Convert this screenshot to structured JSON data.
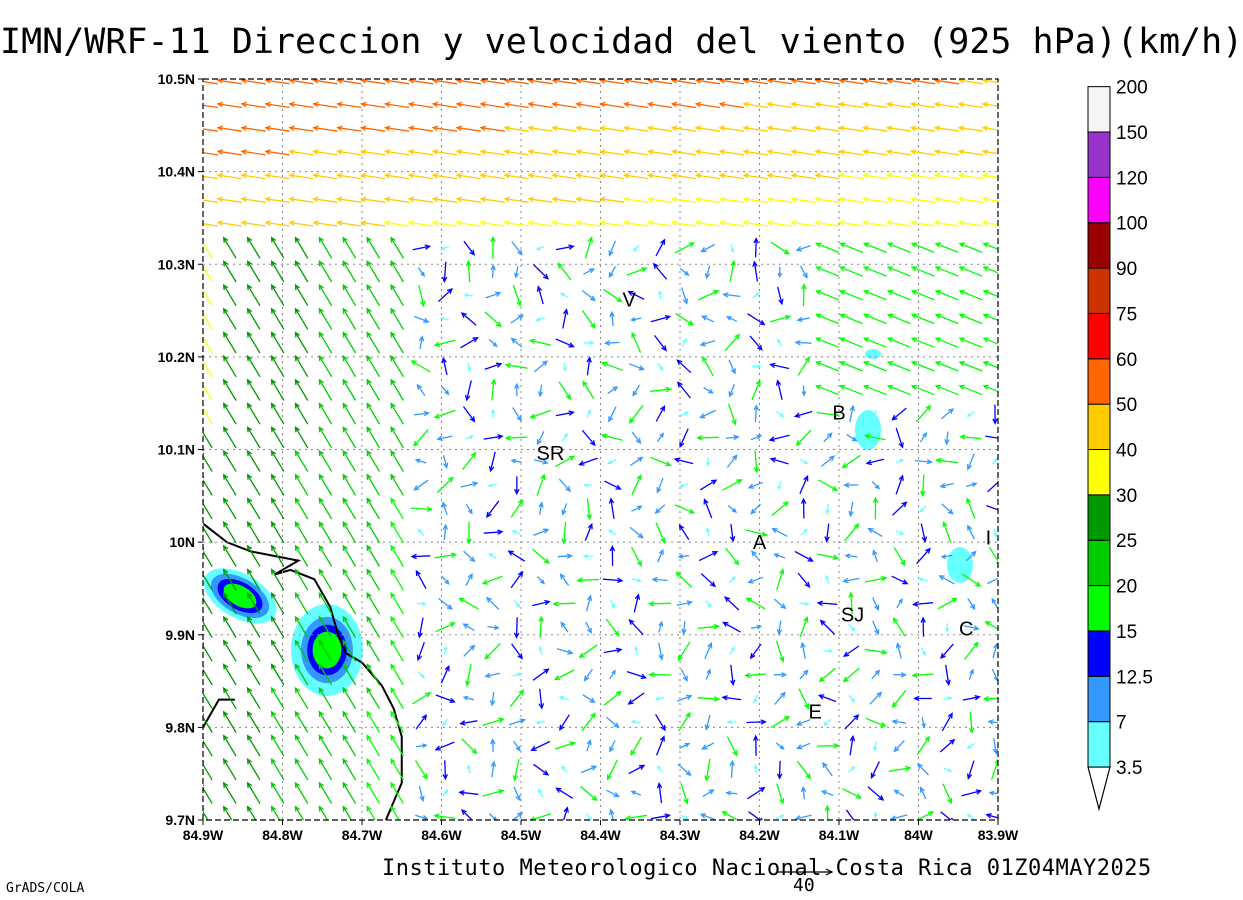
{
  "title": "IMN/WRF-11 Direccion y velocidad del viento (925 hPa)(km/h)",
  "footer": "Instituto Meteorologico Nacional Costa Rica 01Z04MAY2025",
  "credit": "GrADS/COLA",
  "reference_vector": {
    "label": "40",
    "speed_kmh": 40
  },
  "map": {
    "lon_range": [
      -84.9,
      -83.9
    ],
    "lat_range": [
      9.7,
      10.5
    ],
    "grid": "dotted",
    "x_ticks": [
      "84.9W",
      "84.8W",
      "84.7W",
      "84.6W",
      "84.5W",
      "84.4W",
      "84.3W",
      "84.2W",
      "84.1W",
      "84W",
      "83.9W"
    ],
    "y_ticks": [
      "9.7N",
      "9.8N",
      "9.9N",
      "10N",
      "10.1N",
      "10.2N",
      "10.3N",
      "10.4N",
      "10.5N"
    ],
    "places": [
      {
        "label": "V",
        "lon": -84.364,
        "lat": 10.262
      },
      {
        "label": "SR",
        "lon": -84.463,
        "lat": 10.096
      },
      {
        "label": "B",
        "lon": -84.1,
        "lat": 10.14
      },
      {
        "label": "A",
        "lon": -84.2,
        "lat": 10.0
      },
      {
        "label": "I",
        "lon": -83.912,
        "lat": 10.005
      },
      {
        "label": "SJ",
        "lon": -84.083,
        "lat": 9.922
      },
      {
        "label": "C",
        "lon": -83.94,
        "lat": 9.907
      },
      {
        "label": "E",
        "lon": -84.13,
        "lat": 9.817
      }
    ]
  },
  "colorbar": {
    "levels": [
      "3.5",
      "7",
      "12.5",
      "15",
      "20",
      "25",
      "30",
      "40",
      "50",
      "60",
      "75",
      "90",
      "100",
      "120",
      "150",
      "200"
    ],
    "colors": [
      "#66ffff",
      "#3399ff",
      "#0000ff",
      "#00ff00",
      "#00cc00",
      "#009900",
      "#ffff00",
      "#ffcc00",
      "#ff6600",
      "#ff0000",
      "#cc3300",
      "#990000",
      "#ff00ff",
      "#9933cc",
      "#f5f5f5",
      "#a0a0a0"
    ]
  }
}
